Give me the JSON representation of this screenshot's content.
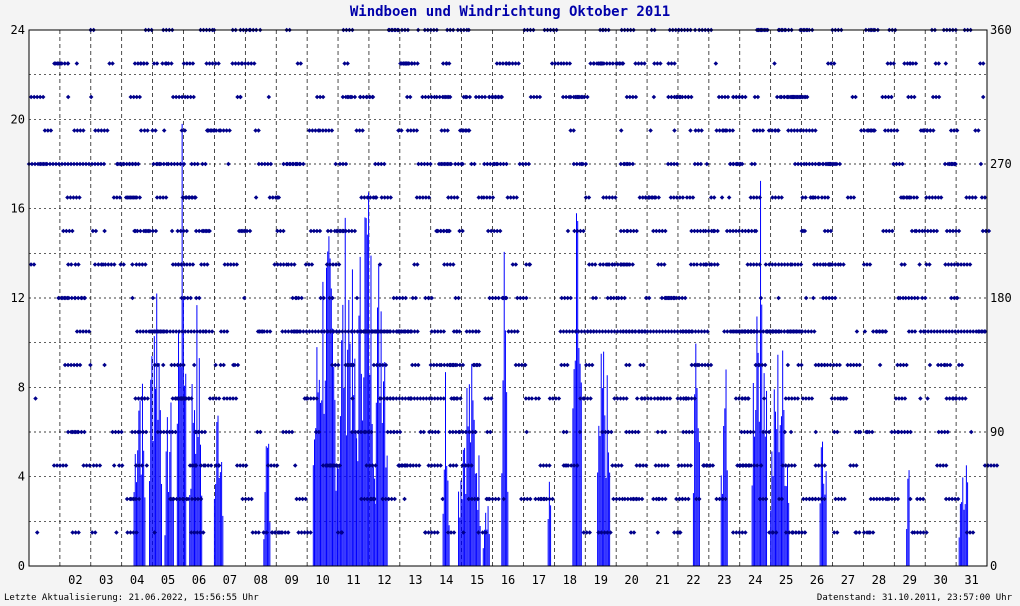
{
  "chart_data": {
    "type": "bar",
    "title": "Windboen und Windrichtung Oktober 2011",
    "left_axis": {
      "min": 0,
      "max": 24,
      "ticks": [
        "0",
        "4",
        "8",
        "12",
        "16",
        "20",
        "24"
      ]
    },
    "right_axis": {
      "min": 0,
      "max": 360,
      "ticks": [
        "0",
        "90",
        "180",
        "270",
        "360"
      ]
    },
    "x_axis": {
      "days": [
        "02",
        "03",
        "04",
        "05",
        "06",
        "07",
        "08",
        "09",
        "10",
        "11",
        "12",
        "13",
        "14",
        "15",
        "16",
        "17",
        "18",
        "19",
        "20",
        "21",
        "22",
        "23",
        "24",
        "25",
        "26",
        "27",
        "28",
        "29",
        "30",
        "31"
      ]
    },
    "grid": true,
    "colors": {
      "bars": "#0000ff",
      "direction": "#00008b",
      "title": "#0000aa"
    },
    "series": [
      {
        "kind": "gust-bars",
        "segments": [
          [
            4.4,
            4.75,
            11
          ],
          [
            4.9,
            5.3,
            15.8
          ],
          [
            5.4,
            5.7,
            8
          ],
          [
            5.8,
            6.1,
            20
          ],
          [
            6.2,
            6.6,
            12.5
          ],
          [
            7.0,
            7.3,
            9
          ],
          [
            8.6,
            8.8,
            7
          ],
          [
            10.2,
            11.0,
            15.8
          ],
          [
            11.0,
            11.6,
            16.6
          ],
          [
            11.6,
            12.2,
            19.4
          ],
          [
            12.2,
            12.6,
            17
          ],
          [
            14.4,
            14.6,
            10.4
          ],
          [
            14.9,
            15.6,
            9.8
          ],
          [
            15.7,
            15.9,
            4.5
          ],
          [
            16.3,
            16.5,
            15.5
          ],
          [
            17.8,
            17.9,
            5
          ],
          [
            18.6,
            18.9,
            16.7
          ],
          [
            19.4,
            19.8,
            10.8
          ],
          [
            22.5,
            22.7,
            12
          ],
          [
            23.4,
            23.6,
            11
          ],
          [
            24.4,
            24.9,
            17.8
          ],
          [
            25.0,
            25.6,
            11
          ],
          [
            26.6,
            26.8,
            10.2
          ],
          [
            29.4,
            29.5,
            5.7
          ],
          [
            31.1,
            31.4,
            6.8
          ]
        ]
      },
      {
        "kind": "direction-dots"
      }
    ]
  },
  "footer": {
    "left": "Letzte Aktualisierung: 21.06.2022, 15:56:55 Uhr",
    "right": "Datenstand: 31.10.2011, 23:57:00 Uhr"
  }
}
